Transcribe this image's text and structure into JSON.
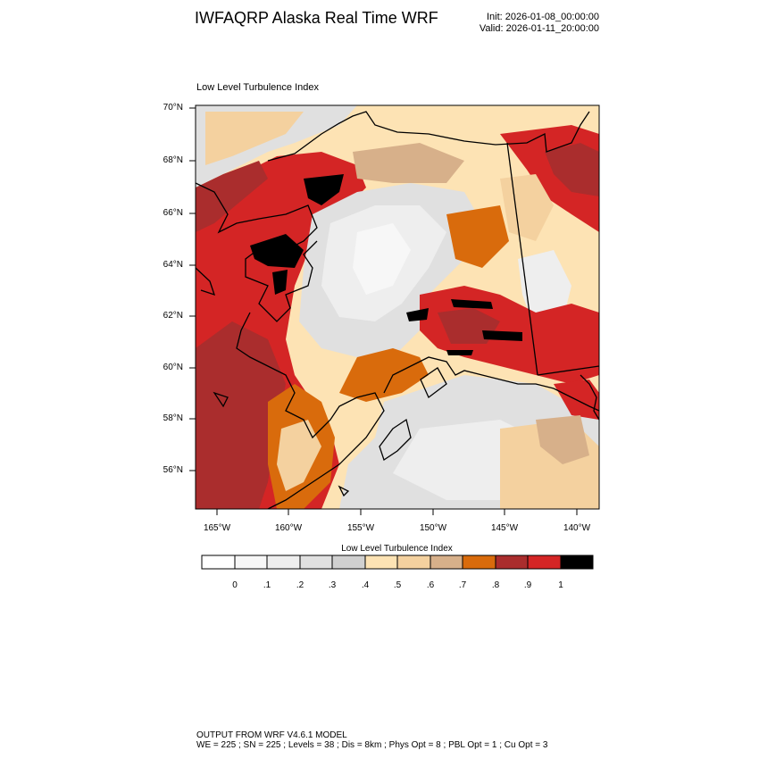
{
  "header": {
    "title": "IWFAQRP Alaska Real Time WRF",
    "init": "Init: 2026-01-08_00:00:00",
    "valid": "Valid: 2026-01-11_20:00:00"
  },
  "map": {
    "title": "Low Level Turbulence Index",
    "lat_labels": [
      "70°N",
      "68°N",
      "66°N",
      "64°N",
      "62°N",
      "60°N",
      "58°N",
      "56°N"
    ],
    "lon_labels": [
      "165°W",
      "160°W",
      "155°W",
      "150°W",
      "145°W",
      "140°W"
    ]
  },
  "colorbar": {
    "title": "Low Level Turbulence Index",
    "labels": [
      "0",
      ".1",
      ".2",
      ".3",
      ".4",
      ".5",
      ".6",
      ".7",
      ".8",
      ".9",
      "1"
    ],
    "colors": [
      "#ffffff",
      "#f7f7f7",
      "#eeeeee",
      "#e0e0e0",
      "#d0d0d0",
      "#fde3b4",
      "#f4d19f",
      "#d7b08a",
      "#d96b0c",
      "#aa2d2d",
      "#d42525",
      "#000000"
    ]
  },
  "footer": {
    "line1": "OUTPUT FROM WRF V4.6.1 MODEL",
    "line2": "WE = 225 ; SN = 225 ; Levels = 38 ; Dis = 8km ; Phys Opt = 8 ; PBL Opt = 1 ; Cu Opt = 3"
  }
}
